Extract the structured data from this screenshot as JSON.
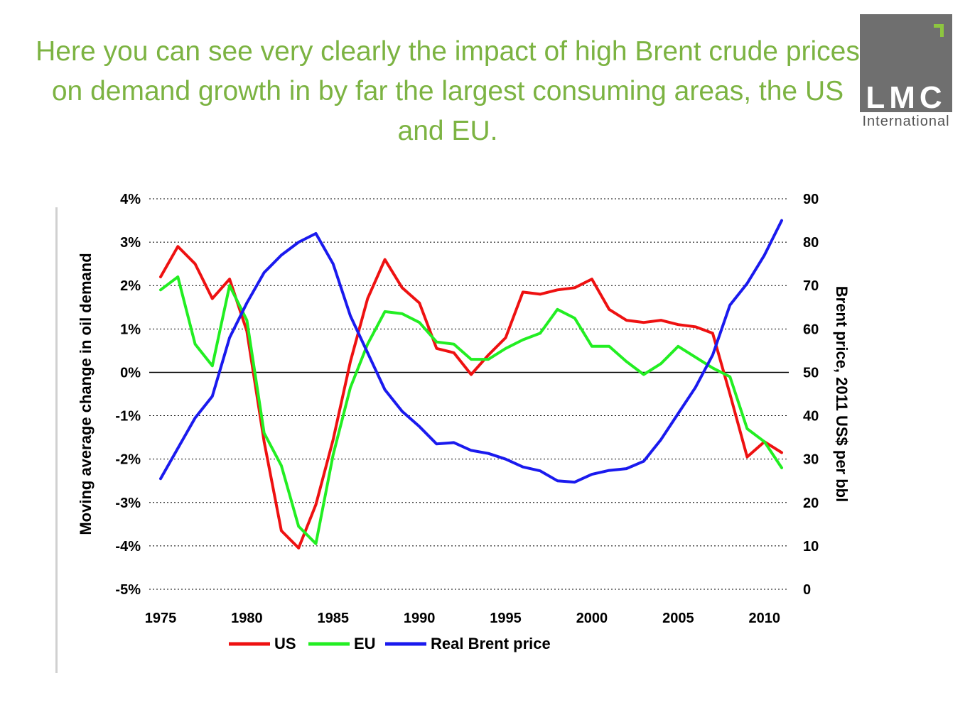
{
  "slide": {
    "title": "Here you can see very clearly the impact of high Brent crude prices on demand growth in by far the largest consuming areas, the US and EU."
  },
  "logo": {
    "letters": "LMC",
    "subtitle": "International",
    "box_color": "#6f6f6f",
    "accent_color": "#8dc63f"
  },
  "chart_data": {
    "type": "line",
    "title": "",
    "xlabel": "",
    "ylabel": "Moving average change in oil demand",
    "y2label": "Brent price, 2011 US$ per bbl",
    "ylim": [
      -5,
      4
    ],
    "y2lim": [
      0,
      90
    ],
    "xlim": [
      1975,
      2011
    ],
    "x_ticks": [
      "1975",
      "1980",
      "1985",
      "1990",
      "1995",
      "2000",
      "2005",
      "2010"
    ],
    "y_ticks": [
      "4%",
      "3%",
      "2%",
      "1%",
      "0%",
      "-1%",
      "-2%",
      "-3%",
      "-4%",
      "-5%"
    ],
    "y2_ticks": [
      "90",
      "80",
      "70",
      "60",
      "50",
      "40",
      "30",
      "20",
      "10",
      "0"
    ],
    "grid": "horizontal dotted",
    "legend": "bottom",
    "x": [
      1975,
      1976,
      1977,
      1978,
      1979,
      1980,
      1981,
      1982,
      1983,
      1984,
      1985,
      1986,
      1987,
      1988,
      1989,
      1990,
      1991,
      1992,
      1993,
      1994,
      1995,
      1996,
      1997,
      1998,
      1999,
      2000,
      2001,
      2002,
      2003,
      2004,
      2005,
      2006,
      2007,
      2008,
      2009,
      2010,
      2011
    ],
    "series": [
      {
        "name": "US",
        "axis": "left",
        "color": "#ee1111",
        "values": [
          2.2,
          2.9,
          2.5,
          1.7,
          2.15,
          0.95,
          -1.6,
          -3.65,
          -4.05,
          -3.05,
          -1.55,
          0.25,
          1.7,
          2.6,
          1.95,
          1.6,
          0.55,
          0.45,
          -0.05,
          0.4,
          0.8,
          1.85,
          1.8,
          1.9,
          1.95,
          2.15,
          1.45,
          1.2,
          1.15,
          1.2,
          1.1,
          1.05,
          0.9,
          -0.5,
          -1.95,
          -1.6,
          -1.85
        ]
      },
      {
        "name": "EU",
        "axis": "left",
        "color": "#22ee22",
        "values": [
          1.9,
          2.2,
          0.65,
          0.15,
          2.0,
          1.2,
          -1.4,
          -2.15,
          -3.55,
          -3.95,
          -1.9,
          -0.35,
          0.65,
          1.4,
          1.35,
          1.15,
          0.7,
          0.65,
          0.3,
          0.3,
          0.55,
          0.75,
          0.9,
          1.45,
          1.25,
          0.6,
          0.6,
          0.25,
          -0.05,
          0.2,
          0.6,
          0.35,
          0.1,
          -0.1,
          -1.3,
          -1.6,
          -2.2
        ]
      },
      {
        "name": "Real Brent price",
        "axis": "right",
        "color": "#1a1aee",
        "values": [
          25.5,
          32.5,
          39.5,
          44.5,
          58,
          66,
          73,
          77,
          80,
          82,
          75,
          63,
          54.5,
          46,
          41,
          37.5,
          33.5,
          33.8,
          32,
          31.3,
          30,
          28.2,
          27.3,
          25,
          24.7,
          26.5,
          27.4,
          27.8,
          29.5,
          34.5,
          40.5,
          46.5,
          54,
          65.5,
          70.5,
          77,
          85
        ]
      }
    ]
  }
}
